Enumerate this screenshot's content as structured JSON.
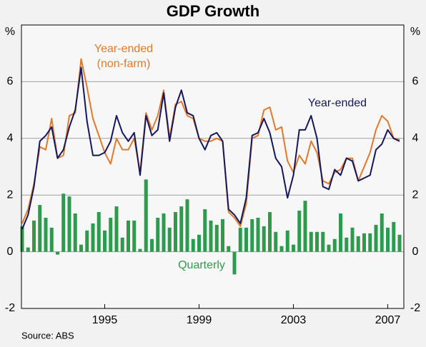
{
  "chart_data": {
    "type": "combo",
    "title": "GDP Growth",
    "y_unit": "%",
    "source": "Source: ABS",
    "categories": [
      null,
      null,
      null,
      null,
      null,
      null,
      null,
      null,
      null,
      null,
      null,
      null,
      null,
      null,
      "1995",
      null,
      null,
      null,
      null,
      null,
      null,
      null,
      null,
      null,
      null,
      null,
      null,
      null,
      null,
      null,
      "1999",
      null,
      null,
      null,
      null,
      null,
      null,
      null,
      null,
      null,
      null,
      null,
      null,
      null,
      null,
      null,
      "2003",
      null,
      null,
      null,
      null,
      null,
      null,
      null,
      null,
      null,
      null,
      null,
      null,
      null,
      null,
      null,
      "2007",
      null,
      null
    ],
    "ylim": [
      -2,
      8
    ],
    "yticks": [
      -2,
      0,
      2,
      4,
      6
    ],
    "y2lim": [
      -2,
      8
    ],
    "y2ticks": [
      -2,
      0,
      2,
      4,
      6
    ],
    "grid": true,
    "series": [
      {
        "name": "Quarterly",
        "type": "bar",
        "color": "#2e9a4e",
        "values": [
          0.9,
          0.15,
          1.1,
          1.65,
          1.2,
          0.85,
          -0.1,
          2.05,
          1.95,
          1.35,
          0.25,
          0.75,
          1.0,
          1.4,
          0.75,
          1.2,
          1.6,
          0.5,
          1.1,
          1.1,
          0.1,
          2.55,
          0.45,
          1.2,
          1.35,
          0.85,
          1.4,
          1.6,
          1.85,
          0.45,
          0.6,
          1.5,
          1.1,
          0.95,
          1.15,
          0.2,
          -0.8,
          0.85,
          0.85,
          1.15,
          1.2,
          0.9,
          1.4,
          0.7,
          0.2,
          0.75,
          0.25,
          1.45,
          1.8,
          0.7,
          0.7,
          0.7,
          0.25,
          0.45,
          1.35,
          0.5,
          0.85,
          0.55,
          0.65,
          0.65,
          0.95,
          1.35,
          0.85,
          1.05,
          0.6
        ]
      },
      {
        "name": "Year-ended (non-farm)",
        "type": "line",
        "color": "#e07a2a",
        "values": [
          1.0,
          1.5,
          2.4,
          3.7,
          3.6,
          4.7,
          3.3,
          3.4,
          4.8,
          4.9,
          6.8,
          5.8,
          4.7,
          4.1,
          3.5,
          3.1,
          4.0,
          3.6,
          3.6,
          4.0,
          2.8,
          4.9,
          4.3,
          4.8,
          5.7,
          4.0,
          5.2,
          5.3,
          4.8,
          4.7,
          4.0,
          3.9,
          3.9,
          4.0,
          3.9,
          1.4,
          1.2,
          0.9,
          1.7,
          4.0,
          4.1,
          5.0,
          5.1,
          4.3,
          4.4,
          3.2,
          2.8,
          3.4,
          3.1,
          3.9,
          3.5,
          2.5,
          2.4,
          2.8,
          2.9,
          3.3,
          3.3,
          2.5,
          3.0,
          3.5,
          4.3,
          4.8,
          4.6,
          4.0,
          3.95
        ]
      },
      {
        "name": "Year-ended",
        "type": "line",
        "color": "#15175e",
        "values": [
          0.8,
          1.3,
          2.3,
          3.9,
          4.1,
          4.4,
          3.3,
          3.6,
          4.4,
          5.0,
          6.5,
          4.6,
          3.4,
          3.4,
          3.5,
          3.9,
          4.8,
          4.2,
          3.9,
          4.2,
          2.7,
          4.8,
          4.1,
          4.3,
          5.6,
          3.9,
          5.1,
          5.7,
          4.9,
          4.8,
          4.0,
          3.6,
          4.1,
          4.2,
          3.9,
          1.5,
          1.3,
          1.0,
          1.9,
          4.1,
          4.2,
          4.7,
          4.2,
          3.3,
          3.0,
          1.9,
          2.7,
          4.3,
          4.3,
          4.8,
          4.0,
          2.3,
          2.2,
          2.9,
          2.7,
          3.3,
          3.2,
          2.5,
          2.6,
          2.7,
          3.6,
          3.8,
          4.3,
          4.0,
          3.9
        ]
      }
    ]
  }
}
